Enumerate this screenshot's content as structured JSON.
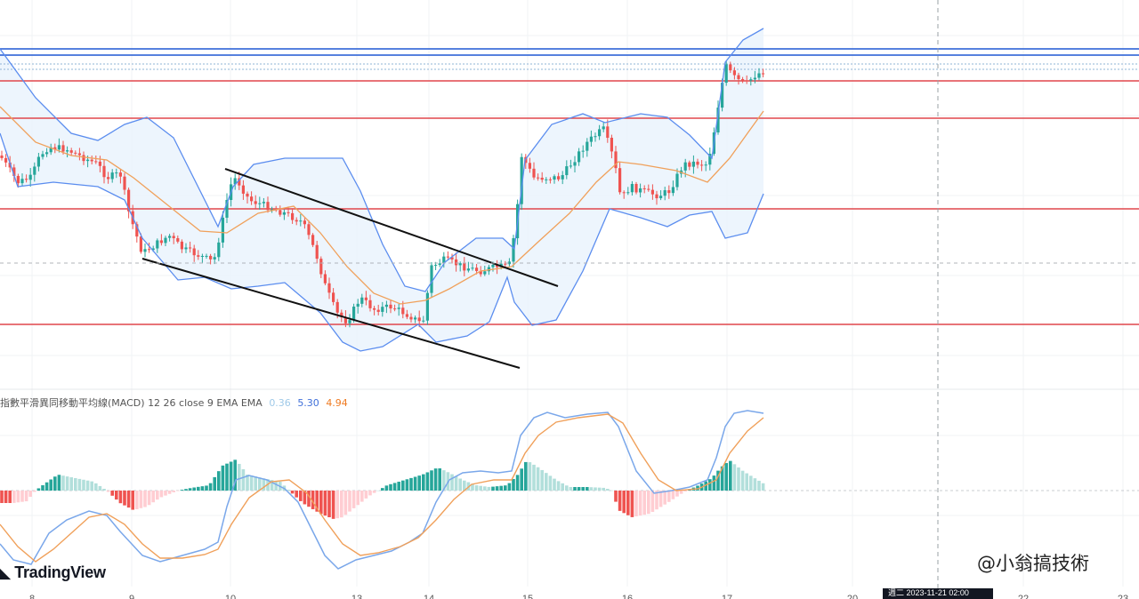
{
  "chart_data": {
    "type": "candlestick",
    "title": "",
    "x_axis": {
      "tick_labels": [
        "8",
        "9",
        "10",
        "13",
        "14",
        "15",
        "16",
        "17",
        "20",
        "22",
        "23"
      ],
      "crosshair_date_label": "週二 2023-11-21 02:00"
    },
    "price_panel": {
      "horizontal_levels_red": [
        "level-1",
        "level-2",
        "level-3",
        "level-4"
      ],
      "horizontal_levels_blue": [
        "level-a",
        "level-b"
      ],
      "channel_lines": [
        "upper-channel",
        "lower-channel"
      ],
      "indicators": [
        "Bollinger Bands",
        "EMA"
      ]
    },
    "macd_panel": {
      "legend_name": "指數平滑異同移動平均線(MACD)",
      "legend_params": "12 26 close 9 EMA EMA",
      "histogram_value": "0.36",
      "macd_value": "5.30",
      "signal_value": "4.94"
    },
    "colors": {
      "up": "#26a69a",
      "down": "#ef5350",
      "bollinger": "#5b8def",
      "ema": "#f0a05a",
      "horizontal_red": "#e0474c",
      "horizontal_blue": "#3f6fd9",
      "macd_line": "#7aa7ea",
      "signal_line": "#f0a05a"
    }
  },
  "branding": {
    "logo_text": "TradingView",
    "watermark_text": "@小翁搞技術"
  }
}
